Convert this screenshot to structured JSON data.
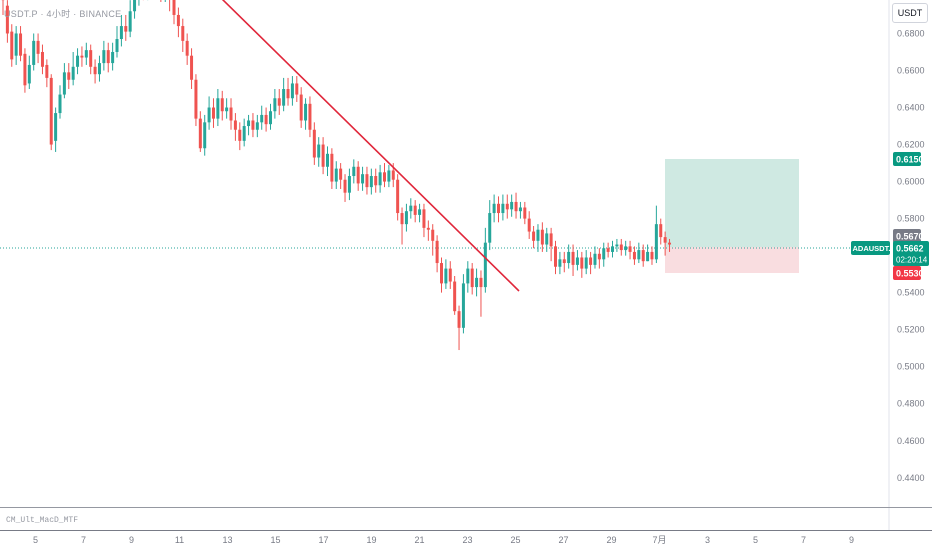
{
  "header": {
    "symbol_title": "USDT.P · 4小时 · BINANCE",
    "currency_button": "USDT"
  },
  "indicator_pane": {
    "label": "CM_Ult_MacD_MTF"
  },
  "colors": {
    "up": "#26a69a",
    "down": "#ef5350",
    "trendline": "#e0263a",
    "target_zone": "#cfe9e2",
    "stop_zone": "#f9dde0",
    "current_line": "#26a69a",
    "axis_text": "#787b86"
  },
  "price_axis": {
    "ticks": [
      "0.6800",
      "0.6600",
      "0.6400",
      "0.6200",
      "0.6000",
      "0.5800",
      "0.5400",
      "0.5200",
      "0.5000",
      "0.4800",
      "0.4600",
      "0.4400"
    ]
  },
  "date_axis": {
    "ticks": [
      "5",
      "7",
      "9",
      "11",
      "13",
      "15",
      "17",
      "19",
      "21",
      "23",
      "25",
      "27",
      "29",
      "7月",
      "3",
      "5",
      "7",
      "9"
    ]
  },
  "badges": {
    "target": "0.6150",
    "entry": "0.5670",
    "symbol": "ADAUSDT.P",
    "last_price": "0.5662",
    "countdown": "02:20:14",
    "stop": "0.5530"
  },
  "chart_data": {
    "type": "candlestick",
    "title": "",
    "x_range": [
      "4",
      "9 7月"
    ],
    "y_range": [
      0.428,
      0.697
    ],
    "grid": false,
    "last_price": 0.5662,
    "position": {
      "entry": 0.567,
      "target": 0.615,
      "stop": 0.553
    },
    "trendline": [
      {
        "date": "12",
        "price": 0.7
      },
      {
        "date": "24",
        "price": 0.545
      }
    ],
    "candles": [
      [
        0.7,
        0.698,
        0.708,
        0.69
      ],
      [
        0.695,
        0.68,
        0.698,
        0.675
      ],
      [
        0.681,
        0.666,
        0.685,
        0.662
      ],
      [
        0.668,
        0.68,
        0.684,
        0.663
      ],
      [
        0.68,
        0.668,
        0.684,
        0.665
      ],
      [
        0.669,
        0.652,
        0.672,
        0.648
      ],
      [
        0.653,
        0.663,
        0.668,
        0.65
      ],
      [
        0.663,
        0.676,
        0.68,
        0.66
      ],
      [
        0.676,
        0.669,
        0.68,
        0.664
      ],
      [
        0.67,
        0.662,
        0.674,
        0.658
      ],
      [
        0.663,
        0.656,
        0.666,
        0.651
      ],
      [
        0.656,
        0.62,
        0.658,
        0.617
      ],
      [
        0.622,
        0.637,
        0.64,
        0.616
      ],
      [
        0.637,
        0.647,
        0.652,
        0.634
      ],
      [
        0.647,
        0.659,
        0.664,
        0.645
      ],
      [
        0.659,
        0.655,
        0.664,
        0.65
      ],
      [
        0.655,
        0.662,
        0.67,
        0.652
      ],
      [
        0.662,
        0.668,
        0.672,
        0.658
      ],
      [
        0.668,
        0.667,
        0.673,
        0.662
      ],
      [
        0.667,
        0.671,
        0.675,
        0.663
      ],
      [
        0.671,
        0.662,
        0.674,
        0.658
      ],
      [
        0.662,
        0.658,
        0.666,
        0.653
      ],
      [
        0.658,
        0.664,
        0.668,
        0.654
      ],
      [
        0.664,
        0.671,
        0.676,
        0.66
      ],
      [
        0.671,
        0.664,
        0.675,
        0.659
      ],
      [
        0.664,
        0.67,
        0.675,
        0.66
      ],
      [
        0.67,
        0.677,
        0.684,
        0.667
      ],
      [
        0.677,
        0.684,
        0.69,
        0.673
      ],
      [
        0.684,
        0.681,
        0.69,
        0.676
      ],
      [
        0.681,
        0.692,
        0.698,
        0.678
      ],
      [
        0.692,
        0.7,
        0.708,
        0.688
      ],
      [
        0.7,
        0.705,
        0.712,
        0.695
      ],
      [
        0.705,
        0.703,
        0.712,
        0.698
      ],
      [
        0.703,
        0.705,
        0.712,
        0.698
      ],
      [
        0.704,
        0.708,
        0.712,
        0.7
      ],
      [
        0.707,
        0.706,
        0.712,
        0.7
      ],
      [
        0.706,
        0.702,
        0.71,
        0.697
      ],
      [
        0.702,
        0.703,
        0.709,
        0.697
      ],
      [
        0.703,
        0.7,
        0.708,
        0.692
      ],
      [
        0.7,
        0.69,
        0.702,
        0.685
      ],
      [
        0.69,
        0.684,
        0.694,
        0.678
      ],
      [
        0.684,
        0.676,
        0.688,
        0.67
      ],
      [
        0.676,
        0.668,
        0.68,
        0.663
      ],
      [
        0.668,
        0.655,
        0.672,
        0.65
      ],
      [
        0.655,
        0.634,
        0.658,
        0.63
      ],
      [
        0.634,
        0.618,
        0.638,
        0.616
      ],
      [
        0.618,
        0.632,
        0.636,
        0.614
      ],
      [
        0.632,
        0.64,
        0.646,
        0.628
      ],
      [
        0.64,
        0.634,
        0.645,
        0.629
      ],
      [
        0.634,
        0.645,
        0.65,
        0.63
      ],
      [
        0.645,
        0.638,
        0.649,
        0.633
      ],
      [
        0.638,
        0.64,
        0.645,
        0.634
      ],
      [
        0.64,
        0.633,
        0.645,
        0.628
      ],
      [
        0.633,
        0.628,
        0.637,
        0.622
      ],
      [
        0.628,
        0.622,
        0.632,
        0.617
      ],
      [
        0.622,
        0.63,
        0.634,
        0.619
      ],
      [
        0.63,
        0.633,
        0.636,
        0.625
      ],
      [
        0.633,
        0.628,
        0.637,
        0.624
      ],
      [
        0.628,
        0.632,
        0.636,
        0.624
      ],
      [
        0.632,
        0.636,
        0.641,
        0.628
      ],
      [
        0.636,
        0.631,
        0.64,
        0.627
      ],
      [
        0.631,
        0.638,
        0.642,
        0.628
      ],
      [
        0.638,
        0.645,
        0.65,
        0.634
      ],
      [
        0.645,
        0.641,
        0.65,
        0.636
      ],
      [
        0.641,
        0.65,
        0.656,
        0.638
      ],
      [
        0.65,
        0.645,
        0.656,
        0.641
      ],
      [
        0.645,
        0.653,
        0.657,
        0.641
      ],
      [
        0.653,
        0.647,
        0.657,
        0.643
      ],
      [
        0.647,
        0.633,
        0.651,
        0.629
      ],
      [
        0.633,
        0.642,
        0.645,
        0.628
      ],
      [
        0.642,
        0.628,
        0.646,
        0.624
      ],
      [
        0.628,
        0.613,
        0.632,
        0.609
      ],
      [
        0.613,
        0.62,
        0.624,
        0.608
      ],
      [
        0.62,
        0.608,
        0.624,
        0.604
      ],
      [
        0.608,
        0.615,
        0.619,
        0.603
      ],
      [
        0.615,
        0.6,
        0.618,
        0.596
      ],
      [
        0.6,
        0.607,
        0.611,
        0.596
      ],
      [
        0.607,
        0.601,
        0.61,
        0.596
      ],
      [
        0.601,
        0.594,
        0.604,
        0.589
      ],
      [
        0.594,
        0.603,
        0.607,
        0.59
      ],
      [
        0.603,
        0.608,
        0.612,
        0.599
      ],
      [
        0.608,
        0.599,
        0.611,
        0.595
      ],
      [
        0.599,
        0.604,
        0.608,
        0.595
      ],
      [
        0.604,
        0.597,
        0.608,
        0.593
      ],
      [
        0.597,
        0.603,
        0.607,
        0.593
      ],
      [
        0.603,
        0.598,
        0.607,
        0.594
      ],
      [
        0.598,
        0.605,
        0.609,
        0.594
      ],
      [
        0.605,
        0.6,
        0.61,
        0.597
      ],
      [
        0.6,
        0.606,
        0.609,
        0.597
      ],
      [
        0.606,
        0.601,
        0.61,
        0.597
      ],
      [
        0.601,
        0.583,
        0.604,
        0.579
      ],
      [
        0.583,
        0.577,
        0.586,
        0.566
      ],
      [
        0.577,
        0.584,
        0.588,
        0.573
      ],
      [
        0.584,
        0.587,
        0.591,
        0.58
      ],
      [
        0.587,
        0.582,
        0.59,
        0.578
      ],
      [
        0.582,
        0.585,
        0.588,
        0.578
      ],
      [
        0.585,
        0.575,
        0.588,
        0.57
      ],
      [
        0.575,
        0.574,
        0.579,
        0.568
      ],
      [
        0.574,
        0.568,
        0.577,
        0.56
      ],
      [
        0.568,
        0.556,
        0.571,
        0.551
      ],
      [
        0.556,
        0.545,
        0.559,
        0.54
      ],
      [
        0.545,
        0.553,
        0.558,
        0.542
      ],
      [
        0.553,
        0.546,
        0.557,
        0.542
      ],
      [
        0.546,
        0.53,
        0.549,
        0.528
      ],
      [
        0.53,
        0.521,
        0.533,
        0.509
      ],
      [
        0.521,
        0.545,
        0.55,
        0.518
      ],
      [
        0.545,
        0.553,
        0.557,
        0.54
      ],
      [
        0.553,
        0.543,
        0.556,
        0.539
      ],
      [
        0.543,
        0.548,
        0.553,
        0.538
      ],
      [
        0.548,
        0.543,
        0.552,
        0.527
      ],
      [
        0.543,
        0.567,
        0.575,
        0.54
      ],
      [
        0.567,
        0.583,
        0.59,
        0.563
      ],
      [
        0.583,
        0.588,
        0.593,
        0.578
      ],
      [
        0.588,
        0.583,
        0.592,
        0.578
      ],
      [
        0.583,
        0.588,
        0.593,
        0.579
      ],
      [
        0.588,
        0.585,
        0.593,
        0.58
      ],
      [
        0.585,
        0.589,
        0.593,
        0.581
      ],
      [
        0.589,
        0.584,
        0.594,
        0.58
      ],
      [
        0.584,
        0.586,
        0.589,
        0.58
      ],
      [
        0.586,
        0.58,
        0.589,
        0.577
      ],
      [
        0.58,
        0.573,
        0.584,
        0.569
      ],
      [
        0.573,
        0.568,
        0.576,
        0.564
      ],
      [
        0.568,
        0.574,
        0.577,
        0.562
      ],
      [
        0.574,
        0.566,
        0.578,
        0.562
      ],
      [
        0.566,
        0.572,
        0.575,
        0.562
      ],
      [
        0.572,
        0.565,
        0.575,
        0.557
      ],
      [
        0.565,
        0.554,
        0.568,
        0.55
      ],
      [
        0.554,
        0.558,
        0.562,
        0.55
      ],
      [
        0.558,
        0.556,
        0.562,
        0.551
      ],
      [
        0.556,
        0.562,
        0.566,
        0.553
      ],
      [
        0.562,
        0.555,
        0.566,
        0.549
      ],
      [
        0.555,
        0.559,
        0.563,
        0.552
      ],
      [
        0.559,
        0.553,
        0.562,
        0.548
      ],
      [
        0.553,
        0.559,
        0.563,
        0.55
      ],
      [
        0.559,
        0.555,
        0.562,
        0.55
      ],
      [
        0.555,
        0.561,
        0.565,
        0.553
      ],
      [
        0.561,
        0.558,
        0.564,
        0.553
      ],
      [
        0.558,
        0.564,
        0.567,
        0.554
      ],
      [
        0.564,
        0.562,
        0.567,
        0.559
      ],
      [
        0.562,
        0.565,
        0.568,
        0.559
      ],
      [
        0.565,
        0.566,
        0.569,
        0.562
      ],
      [
        0.566,
        0.563,
        0.569,
        0.56
      ],
      [
        0.563,
        0.565,
        0.568,
        0.56
      ],
      [
        0.565,
        0.562,
        0.568,
        0.558
      ],
      [
        0.562,
        0.558,
        0.565,
        0.555
      ],
      [
        0.558,
        0.563,
        0.567,
        0.556
      ],
      [
        0.563,
        0.557,
        0.566,
        0.554
      ],
      [
        0.557,
        0.562,
        0.566,
        0.557
      ],
      [
        0.562,
        0.558,
        0.565,
        0.555
      ],
      [
        0.558,
        0.577,
        0.587,
        0.556
      ],
      [
        0.577,
        0.57,
        0.58,
        0.566
      ],
      [
        0.57,
        0.567,
        0.573,
        0.56
      ],
      [
        0.567,
        0.566,
        0.569,
        0.562
      ]
    ]
  }
}
